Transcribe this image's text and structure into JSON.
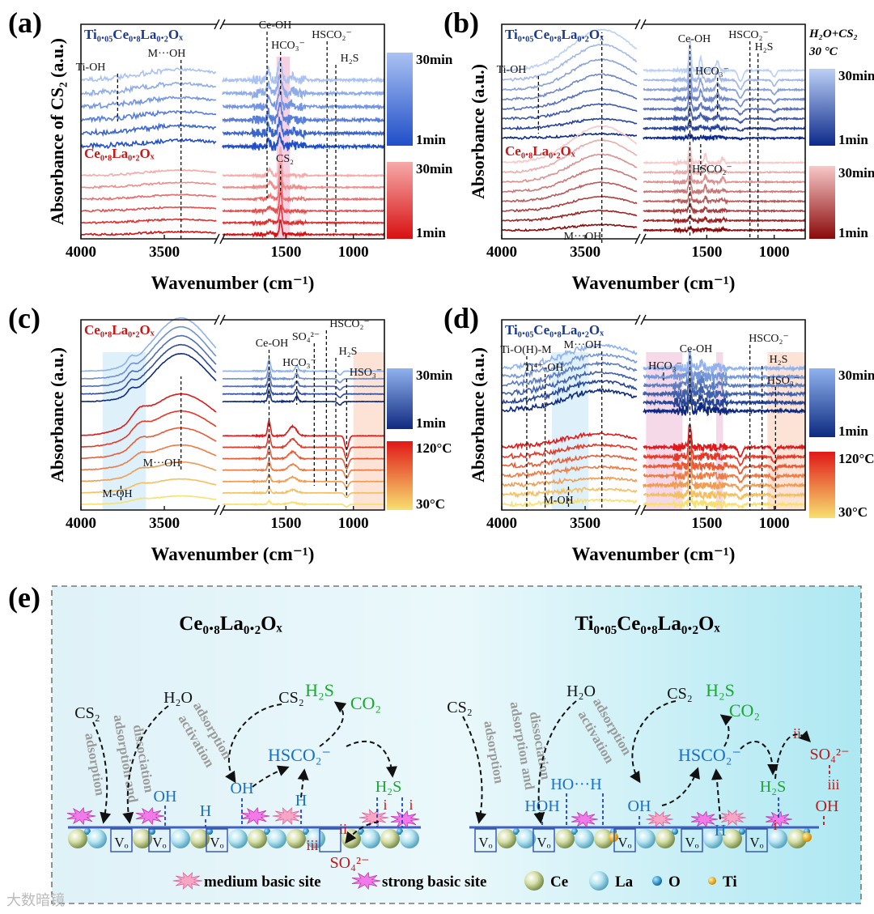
{
  "chart_data": [
    {
      "panel": "(a)",
      "type": "line",
      "ylabel": "Absorbance of CS₂ (a.u.)",
      "xlabel": "Wavenumber (cm⁻¹)",
      "xrange_left": [
        4000,
        3185
      ],
      "xrange_right": [
        1970,
        770
      ],
      "xticks": [
        "4000",
        "3500",
        "1500",
        "1000"
      ],
      "xtick_values": [
        4000,
        3500,
        1500,
        1000
      ],
      "titles": [
        {
          "text": "Ti₀.₀₅Ce₀.₈La₀.₂Oₓ",
          "color": "#1c3a8c"
        },
        {
          "text": "Ce₀.₈La₀.₂Oₓ",
          "color": "#c41a1a"
        }
      ],
      "groups": [
        {
          "name": "Ti₀.₀₅Ce₀.₈La₀.₂Oₓ",
          "n": 6,
          "color_start": "#1f4fc8",
          "color_end": "#aac2f2",
          "cb_top": "30min",
          "cb_bottom": "1min",
          "base": 4.3,
          "step": 0.62,
          "amp": [
            0.6,
            1.0
          ],
          "noise": 0.12,
          "peaks": [
            [
              3400,
              330,
              0.5
            ],
            [
              1545,
              18,
              0.9
            ],
            [
              1630,
              14,
              0.5
            ],
            [
              1450,
              20,
              0.2
            ]
          ]
        },
        {
          "name": "Ce₀.₈La₀.₂Oₓ",
          "n": 6,
          "color_start": "#d81010",
          "color_end": "#f6aaaa",
          "cb_top": "30min",
          "cb_bottom": "1min",
          "base": 0.2,
          "step": 0.55,
          "amp": [
            0.5,
            1.0
          ],
          "noise": 0.05,
          "peaks": [
            [
              3400,
              300,
              0.25
            ],
            [
              1540,
              12,
              1.3
            ],
            [
              1620,
              20,
              0.25
            ]
          ]
        }
      ],
      "bands": [
        {
          "from": 1570,
          "to": 1470,
          "color": "#f2c6dc"
        }
      ],
      "annotations": [
        {
          "text": "Ti-OH",
          "wavenumber": 3780
        },
        {
          "text": "M···OH",
          "wavenumber": 3400
        },
        {
          "text": "Ce-OH",
          "wavenumber": 1640
        },
        {
          "text": "HCO₃⁻",
          "wavenumber": 1540
        },
        {
          "text": "HSCO₂⁻",
          "wavenumber": 1195
        },
        {
          "text": "H₂S",
          "wavenumber": 1130
        },
        {
          "text": "CS₂",
          "wavenumber": 1540
        }
      ]
    },
    {
      "panel": "(b)",
      "type": "line",
      "ylabel": "Absorbance (a.u.)",
      "xlabel": "Wavenumber (cm⁻¹)",
      "xrange_left": [
        4000,
        3185
      ],
      "xrange_right": [
        1970,
        770
      ],
      "xticks": [
        "4000",
        "3500",
        "1500",
        "1000"
      ],
      "xtick_values": [
        4000,
        3500,
        1500,
        1000
      ],
      "condition": [
        "H₂O+CS₂",
        "30 °C"
      ],
      "titles": [
        {
          "text": "Ti₀.₀₅Ce₀.₈La₀.₂Oₓ",
          "color": "#1c3a8c"
        },
        {
          "text": "Ce₀.₈La₀.₂Oₓ",
          "color": "#c41a1a"
        }
      ],
      "groups": [
        {
          "name": "Ti₀.₀₅Ce₀.₈La₀.₂Oₓ",
          "n": 8,
          "color_start": "#0d2a8a",
          "color_end": "#bcd0f6",
          "cb_top": "30min",
          "cb_bottom": "1min",
          "base": 4.7,
          "step": 0.45,
          "amp": [
            0.1,
            1.0
          ],
          "noise": 0.06,
          "peaks": [
            [
              3400,
              260,
              1.9
            ],
            [
              1625,
              12,
              1.4
            ],
            [
              1545,
              14,
              0.6
            ],
            [
              1420,
              18,
              0.4
            ],
            [
              1250,
              25,
              -0.5
            ],
            [
              1000,
              20,
              -0.3
            ]
          ]
        },
        {
          "name": "Ce₀.₈La₀.₂Oₓ",
          "n": 8,
          "color_start": "#8a0a0a",
          "color_end": "#f8c8c8",
          "cb_top": "30min",
          "cb_bottom": "1min",
          "base": 0.4,
          "step": 0.45,
          "amp": [
            0.15,
            1.0
          ],
          "noise": 0.05,
          "peaks": [
            [
              3400,
              260,
              1.7
            ],
            [
              1625,
              12,
              0.9
            ],
            [
              1510,
              12,
              0.4
            ],
            [
              1380,
              15,
              0.2
            ]
          ]
        }
      ],
      "bands": [],
      "annotations": [
        {
          "text": "Ti-OH",
          "wavenumber": 3780
        },
        {
          "text": "M···OH",
          "wavenumber": 3400
        },
        {
          "text": "Ce-OH",
          "wavenumber": 1625
        },
        {
          "text": "HCO₃⁻",
          "wavenumber": 1420
        },
        {
          "text": "HSCO₂⁻",
          "wavenumber": 1180
        },
        {
          "text": "H₂S",
          "wavenumber": 1120
        },
        {
          "text": "HSCO₂⁻",
          "wavenumber": 1545
        }
      ]
    },
    {
      "panel": "(c)",
      "type": "line",
      "ylabel": "Absorbance (a.u.)",
      "xlabel": "Wavenumber (cm⁻¹)",
      "xrange_left": [
        4000,
        3185
      ],
      "xrange_right": [
        1970,
        770
      ],
      "xticks": [
        "4000",
        "3500",
        "1500",
        "1000"
      ],
      "xtick_values": [
        4000,
        3500,
        1500,
        1000
      ],
      "titles": [
        {
          "text": "Ce₀.₈La₀.₂Oₓ",
          "color": "#c41a1a"
        }
      ],
      "groups": [
        {
          "name": "Ce₀.₈La₀.₂Oₓ (time)",
          "n": 5,
          "color_start": "#102a80",
          "color_end": "#90b2ee",
          "cb_top": "30min",
          "cb_bottom": "1min",
          "base": 5.7,
          "step": 0.4,
          "amp": [
            0.9,
            1.0
          ],
          "noise": 0.02,
          "peaks": [
            [
              3400,
              230,
              2.8
            ],
            [
              3700,
              30,
              0.3
            ],
            [
              1625,
              14,
              0.6
            ],
            [
              1420,
              15,
              0.3
            ],
            [
              1100,
              20,
              -0.2
            ]
          ]
        },
        {
          "name": "Ce₀.₈La₀.₂Oₓ (temperature)",
          "n": 7,
          "color_start": "#f8e070",
          "color_end": "#e01818",
          "cb_top": "120°C",
          "cb_bottom": "30°C",
          "base": 0.3,
          "step": 0.6,
          "amp": [
            0.2,
            1.0
          ],
          "noise": 0.02,
          "peaks": [
            [
              3400,
              280,
              2.2
            ],
            [
              3650,
              60,
              0.5
            ],
            [
              1625,
              14,
              0.8
            ],
            [
              1450,
              40,
              0.5
            ],
            [
              1050,
              20,
              -0.7
            ]
          ]
        }
      ],
      "bands": [
        {
          "from": 3870,
          "to": 3610,
          "color": "#d6ecf8"
        },
        {
          "from": 1000,
          "to": 770,
          "color": "#fbdccc"
        }
      ],
      "annotations": [
        {
          "text": "M···OH",
          "wavenumber": 3400
        },
        {
          "text": "M-OH",
          "wavenumber": 3760
        },
        {
          "text": "Ce-OH",
          "wavenumber": 1625
        },
        {
          "text": "HCO₃⁻",
          "wavenumber": 1420
        },
        {
          "text": "SO₄²⁻",
          "wavenumber": 1290
        },
        {
          "text": "HSCO₂⁻",
          "wavenumber": 1200
        },
        {
          "text": "H₂S",
          "wavenumber": 1130
        },
        {
          "text": "HSO₃⁻",
          "wavenumber": 1050
        }
      ]
    },
    {
      "panel": "(d)",
      "type": "line",
      "ylabel": "Absorbance (a.u.)",
      "xlabel": "Wavenumber (cm⁻¹)",
      "xrange_left": [
        4000,
        3185
      ],
      "xrange_right": [
        1970,
        770
      ],
      "xticks": [
        "4000",
        "3500",
        "1500",
        "1000"
      ],
      "xtick_values": [
        4000,
        3500,
        1500,
        1000
      ],
      "titles": [
        {
          "text": "Ti₀.₀₅Ce₀.₈La₀.₂Oₓ",
          "color": "#1c3a8c"
        }
      ],
      "groups": [
        {
          "name": "Ti₀.₀₅Ce₀.₈La₀.₂Oₓ (time)",
          "n": 6,
          "color_start": "#0d2a80",
          "color_end": "#90b2ee",
          "cb_top": "30min",
          "cb_bottom": "1min",
          "base": 5.2,
          "step": 0.45,
          "amp": [
            0.9,
            1.0
          ],
          "noise": 0.15,
          "peaks": [
            [
              3400,
              320,
              1.2
            ],
            [
              1625,
              14,
              0.8
            ],
            [
              1540,
              20,
              0.3
            ]
          ]
        },
        {
          "name": "Ti₀.₀₅Ce₀.₈La₀.₂Oₓ (temperature)",
          "n": 7,
          "color_start": "#f8e070",
          "color_end": "#e01818",
          "cb_top": "120°C",
          "cb_bottom": "30°C",
          "base": 0.3,
          "step": 0.5,
          "amp": [
            0.3,
            1.0
          ],
          "noise": 0.12,
          "peaks": [
            [
              3400,
              320,
              0.7
            ],
            [
              1625,
              14,
              1.2
            ],
            [
              1250,
              22,
              -0.5
            ],
            [
              1000,
              20,
              -0.3
            ]
          ]
        }
      ],
      "bands": [
        {
          "from": 3700,
          "to": 3480,
          "color": "#d6ecf8"
        },
        {
          "from": 1950,
          "to": 1680,
          "color": "#f2d0e4"
        },
        {
          "from": 1430,
          "to": 1380,
          "color": "#f2d0e4"
        },
        {
          "from": 1050,
          "to": 770,
          "color": "#fbdccc"
        }
      ],
      "annotations": [
        {
          "text": "Ti-O(H)-M",
          "wavenumber": 3850
        },
        {
          "text": "Ti⁴⁺-OH",
          "wavenumber": 3740
        },
        {
          "text": "M···OH",
          "wavenumber": 3400
        },
        {
          "text": "M-OH",
          "wavenumber": 3600
        },
        {
          "text": "HCO₃⁻",
          "wavenumber": 1820
        },
        {
          "text": "Ce-OH",
          "wavenumber": 1625
        },
        {
          "text": "HSCO₂⁻",
          "wavenumber": 1180
        },
        {
          "text": "H₂S",
          "wavenumber": 1090
        },
        {
          "text": "HSO₃⁻",
          "wavenumber": 990
        }
      ]
    }
  ],
  "scheme": {
    "panel": "(e)",
    "left_title": "Ce₀.₈La₀.₂Oₓ",
    "right_title": "Ti₀.₀₅Ce₀.₈La₀.₂Oₓ",
    "labels": {
      "cs2": "CS₂",
      "h2o": "H₂O",
      "h2s": "H₂S",
      "co2": "CO₂",
      "hsco2": "HSCO₂⁻",
      "oh": "OH",
      "h": "H",
      "hoh": "HOH",
      "hoh_dot": "HO···H",
      "so4": "SO₄²⁻",
      "i": "i",
      "ii": "ii",
      "iii": "iii",
      "vo": "Vₒ",
      "adsorption": "adsorption",
      "adsorption_and": "adsorption and",
      "dissociation": "dissociation",
      "adsorption2": "adsorption",
      "activation": "activation"
    },
    "legend": [
      "medium basic site",
      "strong basic site",
      "Ce",
      "La",
      "O",
      "Ti"
    ]
  },
  "watermark": "大数暗镜"
}
